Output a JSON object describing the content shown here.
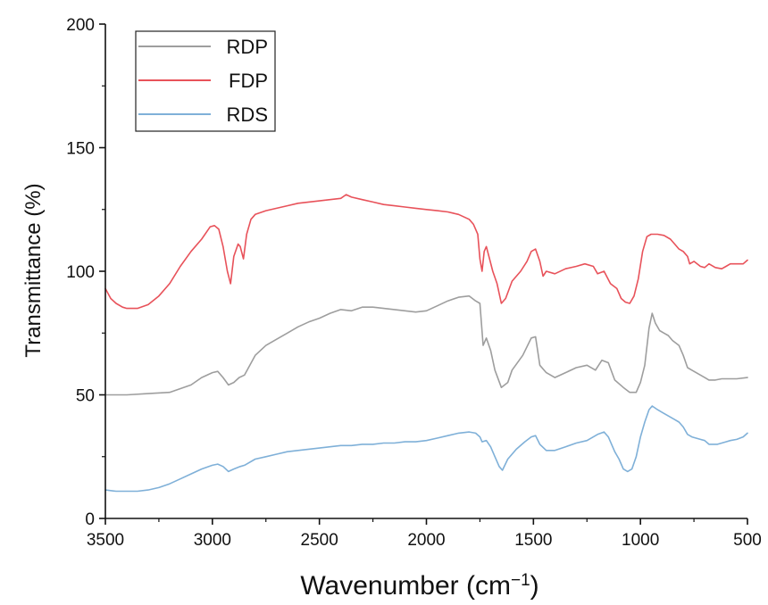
{
  "chart_data": {
    "type": "line",
    "title": "",
    "xlabel": "Wavenumber (cm",
    "xlabel_sup": "−1",
    "xlabel_close": ")",
    "ylabel": "Transmittance (%)",
    "xlim": [
      3500,
      500
    ],
    "ylim": [
      0,
      200
    ],
    "x_reversed": true,
    "x_ticks": [
      3500,
      3000,
      2500,
      2000,
      1500,
      1000,
      500
    ],
    "y_ticks": [
      0,
      50,
      100,
      150,
      200
    ],
    "grid": false,
    "legend_position": "top-left",
    "series": [
      {
        "name": "RDP",
        "color": "#9e9e9e",
        "points": [
          [
            3500,
            50
          ],
          [
            3400,
            50
          ],
          [
            3300,
            50.5
          ],
          [
            3200,
            51
          ],
          [
            3100,
            54
          ],
          [
            3050,
            57
          ],
          [
            3000,
            59
          ],
          [
            2975,
            59.5
          ],
          [
            2950,
            57
          ],
          [
            2925,
            54
          ],
          [
            2900,
            55
          ],
          [
            2875,
            57
          ],
          [
            2850,
            58
          ],
          [
            2800,
            66
          ],
          [
            2750,
            70
          ],
          [
            2700,
            72.5
          ],
          [
            2650,
            75
          ],
          [
            2600,
            77.5
          ],
          [
            2550,
            79.5
          ],
          [
            2500,
            81
          ],
          [
            2450,
            83
          ],
          [
            2400,
            84.5
          ],
          [
            2350,
            84
          ],
          [
            2300,
            85.5
          ],
          [
            2250,
            85.5
          ],
          [
            2200,
            85
          ],
          [
            2150,
            84.5
          ],
          [
            2100,
            84
          ],
          [
            2050,
            83.5
          ],
          [
            2000,
            84
          ],
          [
            1950,
            86
          ],
          [
            1900,
            88
          ],
          [
            1850,
            89.5
          ],
          [
            1800,
            90
          ],
          [
            1770,
            88
          ],
          [
            1750,
            87
          ],
          [
            1735,
            70
          ],
          [
            1720,
            73
          ],
          [
            1700,
            68
          ],
          [
            1680,
            60
          ],
          [
            1650,
            53
          ],
          [
            1620,
            55
          ],
          [
            1600,
            60
          ],
          [
            1550,
            66
          ],
          [
            1510,
            73
          ],
          [
            1490,
            73.5
          ],
          [
            1470,
            62
          ],
          [
            1440,
            59
          ],
          [
            1400,
            57
          ],
          [
            1350,
            59
          ],
          [
            1300,
            61
          ],
          [
            1250,
            62
          ],
          [
            1210,
            60
          ],
          [
            1180,
            64
          ],
          [
            1150,
            63
          ],
          [
            1120,
            56
          ],
          [
            1080,
            53
          ],
          [
            1050,
            51
          ],
          [
            1020,
            51
          ],
          [
            1000,
            55
          ],
          [
            980,
            62
          ],
          [
            960,
            77
          ],
          [
            945,
            83
          ],
          [
            930,
            79
          ],
          [
            910,
            76
          ],
          [
            890,
            75
          ],
          [
            870,
            74
          ],
          [
            850,
            72
          ],
          [
            820,
            70
          ],
          [
            800,
            66
          ],
          [
            780,
            61
          ],
          [
            760,
            60
          ],
          [
            740,
            59
          ],
          [
            720,
            58
          ],
          [
            700,
            57
          ],
          [
            680,
            56
          ],
          [
            650,
            56
          ],
          [
            620,
            56.5
          ],
          [
            580,
            56.5
          ],
          [
            550,
            56.5
          ],
          [
            500,
            57
          ]
        ]
      },
      {
        "name": "FDP",
        "color": "#e8525a",
        "points": [
          [
            3500,
            93
          ],
          [
            3475,
            89
          ],
          [
            3450,
            87
          ],
          [
            3420,
            85.5
          ],
          [
            3400,
            85
          ],
          [
            3350,
            85
          ],
          [
            3300,
            86.5
          ],
          [
            3250,
            90
          ],
          [
            3200,
            95
          ],
          [
            3150,
            102
          ],
          [
            3100,
            108
          ],
          [
            3050,
            113
          ],
          [
            3010,
            118
          ],
          [
            2990,
            118.5
          ],
          [
            2970,
            117
          ],
          [
            2950,
            110
          ],
          [
            2930,
            100
          ],
          [
            2915,
            95
          ],
          [
            2900,
            106
          ],
          [
            2880,
            111
          ],
          [
            2870,
            110
          ],
          [
            2855,
            105
          ],
          [
            2840,
            115
          ],
          [
            2820,
            121
          ],
          [
            2800,
            123
          ],
          [
            2750,
            124.5
          ],
          [
            2700,
            125.5
          ],
          [
            2650,
            126.5
          ],
          [
            2600,
            127.5
          ],
          [
            2550,
            128
          ],
          [
            2500,
            128.5
          ],
          [
            2450,
            129
          ],
          [
            2400,
            129.5
          ],
          [
            2375,
            131
          ],
          [
            2350,
            130
          ],
          [
            2300,
            129
          ],
          [
            2250,
            128
          ],
          [
            2200,
            127
          ],
          [
            2150,
            126.5
          ],
          [
            2100,
            126
          ],
          [
            2050,
            125.5
          ],
          [
            2000,
            125
          ],
          [
            1950,
            124.5
          ],
          [
            1900,
            124
          ],
          [
            1850,
            123
          ],
          [
            1800,
            121
          ],
          [
            1780,
            119
          ],
          [
            1760,
            115
          ],
          [
            1750,
            105
          ],
          [
            1740,
            100
          ],
          [
            1730,
            108
          ],
          [
            1720,
            110
          ],
          [
            1705,
            105
          ],
          [
            1690,
            100
          ],
          [
            1670,
            95
          ],
          [
            1650,
            87
          ],
          [
            1630,
            89
          ],
          [
            1600,
            96
          ],
          [
            1560,
            100
          ],
          [
            1530,
            104
          ],
          [
            1510,
            108
          ],
          [
            1490,
            109
          ],
          [
            1470,
            104
          ],
          [
            1455,
            98
          ],
          [
            1440,
            100
          ],
          [
            1400,
            99
          ],
          [
            1350,
            101
          ],
          [
            1300,
            102
          ],
          [
            1260,
            103
          ],
          [
            1220,
            102
          ],
          [
            1200,
            99
          ],
          [
            1170,
            100
          ],
          [
            1140,
            95
          ],
          [
            1110,
            93
          ],
          [
            1090,
            89
          ],
          [
            1070,
            87.5
          ],
          [
            1050,
            87
          ],
          [
            1030,
            90
          ],
          [
            1010,
            97
          ],
          [
            990,
            108
          ],
          [
            970,
            114
          ],
          [
            950,
            115
          ],
          [
            920,
            115
          ],
          [
            890,
            114.5
          ],
          [
            860,
            113
          ],
          [
            840,
            111
          ],
          [
            820,
            109
          ],
          [
            800,
            108
          ],
          [
            780,
            106
          ],
          [
            770,
            103
          ],
          [
            750,
            104
          ],
          [
            720,
            102
          ],
          [
            700,
            101.5
          ],
          [
            680,
            103
          ],
          [
            650,
            101.5
          ],
          [
            620,
            101
          ],
          [
            600,
            102
          ],
          [
            580,
            103
          ],
          [
            550,
            103
          ],
          [
            520,
            103
          ],
          [
            500,
            104.5
          ]
        ]
      },
      {
        "name": "RDS",
        "color": "#7fb0d8",
        "points": [
          [
            3500,
            11.5
          ],
          [
            3450,
            11
          ],
          [
            3400,
            11
          ],
          [
            3350,
            11
          ],
          [
            3300,
            11.5
          ],
          [
            3250,
            12.5
          ],
          [
            3200,
            14
          ],
          [
            3150,
            16
          ],
          [
            3100,
            18
          ],
          [
            3050,
            20
          ],
          [
            3000,
            21.5
          ],
          [
            2975,
            22
          ],
          [
            2950,
            21
          ],
          [
            2925,
            19
          ],
          [
            2900,
            20
          ],
          [
            2870,
            21
          ],
          [
            2850,
            21.5
          ],
          [
            2800,
            24
          ],
          [
            2750,
            25
          ],
          [
            2700,
            26
          ],
          [
            2650,
            27
          ],
          [
            2600,
            27.5
          ],
          [
            2550,
            28
          ],
          [
            2500,
            28.5
          ],
          [
            2450,
            29
          ],
          [
            2400,
            29.5
          ],
          [
            2350,
            29.5
          ],
          [
            2300,
            30
          ],
          [
            2250,
            30
          ],
          [
            2200,
            30.5
          ],
          [
            2150,
            30.5
          ],
          [
            2100,
            31
          ],
          [
            2050,
            31
          ],
          [
            2000,
            31.5
          ],
          [
            1950,
            32.5
          ],
          [
            1900,
            33.5
          ],
          [
            1850,
            34.5
          ],
          [
            1800,
            35
          ],
          [
            1770,
            34.5
          ],
          [
            1750,
            33
          ],
          [
            1740,
            31
          ],
          [
            1720,
            31.5
          ],
          [
            1700,
            29
          ],
          [
            1680,
            25
          ],
          [
            1660,
            21
          ],
          [
            1645,
            19.5
          ],
          [
            1620,
            24
          ],
          [
            1580,
            28
          ],
          [
            1540,
            31
          ],
          [
            1510,
            33
          ],
          [
            1490,
            33.5
          ],
          [
            1470,
            30
          ],
          [
            1440,
            27.5
          ],
          [
            1400,
            27.5
          ],
          [
            1350,
            29
          ],
          [
            1300,
            30.5
          ],
          [
            1250,
            31.5
          ],
          [
            1200,
            34
          ],
          [
            1170,
            35
          ],
          [
            1150,
            33
          ],
          [
            1120,
            27
          ],
          [
            1100,
            24
          ],
          [
            1080,
            20
          ],
          [
            1060,
            19
          ],
          [
            1040,
            20
          ],
          [
            1020,
            25
          ],
          [
            1000,
            33
          ],
          [
            980,
            39
          ],
          [
            960,
            44
          ],
          [
            945,
            45.5
          ],
          [
            920,
            44
          ],
          [
            900,
            43
          ],
          [
            880,
            42
          ],
          [
            860,
            41
          ],
          [
            840,
            40
          ],
          [
            820,
            39
          ],
          [
            800,
            37
          ],
          [
            780,
            34
          ],
          [
            760,
            33
          ],
          [
            740,
            32.5
          ],
          [
            720,
            32
          ],
          [
            700,
            31.5
          ],
          [
            680,
            30
          ],
          [
            660,
            30
          ],
          [
            640,
            30
          ],
          [
            620,
            30.5
          ],
          [
            600,
            31
          ],
          [
            580,
            31.5
          ],
          [
            550,
            32
          ],
          [
            520,
            33
          ],
          [
            500,
            34.5
          ]
        ]
      }
    ]
  }
}
